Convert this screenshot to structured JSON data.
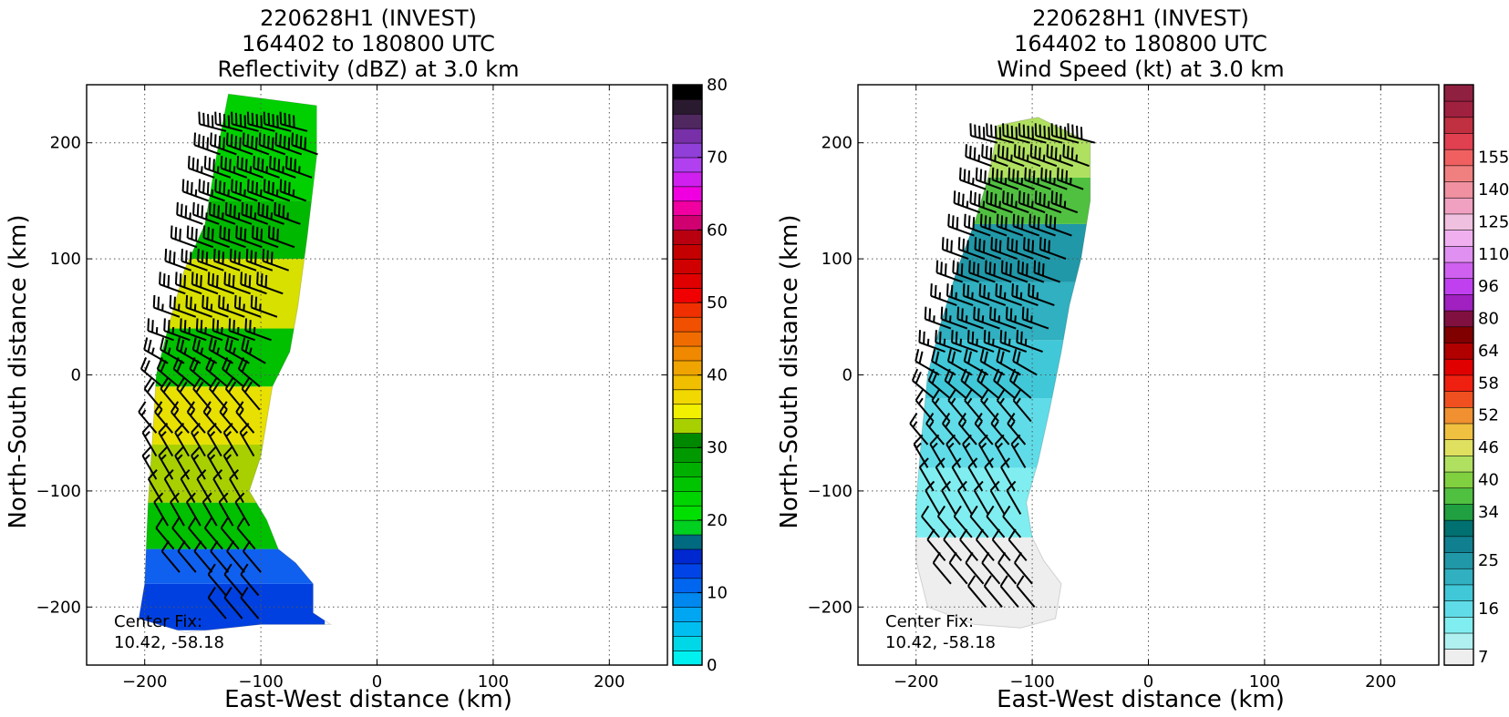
{
  "chart_data": [
    {
      "type": "heatmap",
      "title_lines": [
        "220628H1 (INVEST)",
        "164402 to 180800 UTC",
        "Reflectivity (dBZ) at 3.0 km"
      ],
      "xlabel": "East-West distance (km)",
      "ylabel": "North-South distance (km)",
      "xlim": [
        -250,
        250
      ],
      "ylim": [
        -250,
        250
      ],
      "xticks": [
        -200,
        -100,
        0,
        100,
        200
      ],
      "yticks": [
        -200,
        -100,
        0,
        100,
        200
      ],
      "grid": true,
      "annotation": [
        "Center Fix:",
        "10.42, -58.18"
      ],
      "colorbar": {
        "min": 0,
        "max": 80,
        "ticks": [
          0,
          10,
          20,
          30,
          40,
          50,
          60,
          70,
          80
        ],
        "colors": [
          "#00f0f0",
          "#00d8e8",
          "#00bff0",
          "#00a6f2",
          "#0088ef",
          "#0066f0",
          "#0044e8",
          "#0028d0",
          "#006a80",
          "#00d020",
          "#00e000",
          "#00d400",
          "#00c400",
          "#00b000",
          "#009a00",
          "#008800",
          "#a8d000",
          "#f0f000",
          "#f0d800",
          "#f0bf00",
          "#f0a400",
          "#f08800",
          "#f06c00",
          "#f05000",
          "#f03000",
          "#f00000",
          "#e00000",
          "#d00000",
          "#c40000",
          "#b80010",
          "#d00070",
          "#f000a0",
          "#f000e0",
          "#d020f0",
          "#b040f0",
          "#9040d8",
          "#7830a8",
          "#502860",
          "#2a1a30",
          "#000000"
        ]
      },
      "field": {
        "x_range": [
          -205,
          -45
        ],
        "y_range": [
          -220,
          245
        ],
        "path_km": [
          [
            -128,
            242
          ],
          [
            -52,
            232
          ],
          [
            -52,
            188
          ],
          [
            -60,
            120
          ],
          [
            -68,
            60
          ],
          [
            -75,
            20
          ],
          [
            -90,
            -10
          ],
          [
            -100,
            -70
          ],
          [
            -110,
            -100
          ],
          [
            -95,
            -125
          ],
          [
            -85,
            -150
          ],
          [
            -70,
            -162
          ],
          [
            -55,
            -180
          ],
          [
            -55,
            -205
          ],
          [
            -40,
            -215
          ],
          [
            -100,
            -215
          ],
          [
            -165,
            -222
          ],
          [
            -205,
            -210
          ],
          [
            -200,
            -180
          ],
          [
            -197,
            -110
          ],
          [
            -193,
            -50
          ],
          [
            -190,
            0
          ],
          [
            -180,
            40
          ],
          [
            -166,
            90
          ],
          [
            -148,
            130
          ],
          [
            -138,
            190
          ]
        ],
        "bands_y": [
          [
            -220,
            -180
          ],
          [
            -180,
            -150
          ],
          [
            -150,
            -110
          ],
          [
            -110,
            -60
          ],
          [
            -60,
            -10
          ],
          [
            -10,
            40
          ],
          [
            40,
            100
          ],
          [
            100,
            150
          ],
          [
            150,
            245
          ]
        ],
        "band_colors": [
          "#0040e0",
          "#1060f0",
          "#00c000",
          "#a8d000",
          "#e8e000",
          "#00c000",
          "#d8e000",
          "#00b800",
          "#00d000"
        ]
      },
      "barbs": {
        "rows": [
          {
            "y": 210,
            "x_start": -130,
            "x_end": -55,
            "dir_from": 285,
            "speed_kt": 40
          },
          {
            "y": 190,
            "x_start": -135,
            "x_end": -50,
            "dir_from": 290,
            "speed_kt": 40
          },
          {
            "y": 170,
            "x_start": -140,
            "x_end": -55,
            "dir_from": 290,
            "speed_kt": 35
          },
          {
            "y": 150,
            "x_start": -145,
            "x_end": -60,
            "dir_from": 290,
            "speed_kt": 35
          },
          {
            "y": 130,
            "x_start": -150,
            "x_end": -65,
            "dir_from": 290,
            "speed_kt": 35
          },
          {
            "y": 110,
            "x_start": -155,
            "x_end": -70,
            "dir_from": 290,
            "speed_kt": 30
          },
          {
            "y": 90,
            "x_start": -160,
            "x_end": -70,
            "dir_from": 290,
            "speed_kt": 30
          },
          {
            "y": 70,
            "x_start": -165,
            "x_end": -75,
            "dir_from": 290,
            "speed_kt": 30
          },
          {
            "y": 50,
            "x_start": -170,
            "x_end": -80,
            "dir_from": 290,
            "speed_kt": 25
          },
          {
            "y": 30,
            "x_start": -175,
            "x_end": -85,
            "dir_from": 290,
            "speed_kt": 25
          },
          {
            "y": 10,
            "x_start": -180,
            "x_end": -90,
            "dir_from": 300,
            "speed_kt": 25
          },
          {
            "y": -10,
            "x_start": -185,
            "x_end": -95,
            "dir_from": 310,
            "speed_kt": 20
          },
          {
            "y": -30,
            "x_start": -185,
            "x_end": -100,
            "dir_from": 320,
            "speed_kt": 20
          },
          {
            "y": -50,
            "x_start": -190,
            "x_end": -100,
            "dir_from": 320,
            "speed_kt": 15
          },
          {
            "y": -70,
            "x_start": -190,
            "x_end": -105,
            "dir_from": 330,
            "speed_kt": 15
          },
          {
            "y": -90,
            "x_start": -190,
            "x_end": -110,
            "dir_from": 330,
            "speed_kt": 15
          },
          {
            "y": -110,
            "x_start": -185,
            "x_end": -115,
            "dir_from": 330,
            "speed_kt": 10
          },
          {
            "y": -130,
            "x_start": -180,
            "x_end": -110,
            "dir_from": 330,
            "speed_kt": 10
          },
          {
            "y": -150,
            "x_start": -175,
            "x_end": -100,
            "dir_from": 320,
            "speed_kt": 10
          },
          {
            "y": -170,
            "x_start": -170,
            "x_end": -95,
            "dir_from": 320,
            "speed_kt": 10
          },
          {
            "y": -190,
            "x_start": -130,
            "x_end": -90,
            "dir_from": 320,
            "speed_kt": 10
          },
          {
            "y": -210,
            "x_start": -130,
            "x_end": -100,
            "dir_from": 320,
            "speed_kt": 10
          }
        ],
        "spacing_km": 14
      }
    },
    {
      "type": "heatmap",
      "title_lines": [
        "220628H1 (INVEST)",
        "164402 to 180800 UTC",
        "Wind Speed (kt) at 3.0 km"
      ],
      "xlabel": "East-West distance (km)",
      "ylabel": "North-South distance (km)",
      "xlim": [
        -250,
        250
      ],
      "ylim": [
        -250,
        250
      ],
      "xticks": [
        -200,
        -100,
        0,
        100,
        200
      ],
      "yticks": [
        -200,
        -100,
        0,
        100,
        200
      ],
      "grid": true,
      "annotation": [
        "Center Fix:",
        "10.42, -58.18"
      ],
      "colorbar": {
        "tick_labels": [
          "7",
          "16",
          "25",
          "34",
          "40",
          "46",
          "52",
          "58",
          "64",
          "80",
          "96",
          "110",
          "125",
          "140",
          "155"
        ],
        "tick_bins": [
          0,
          3,
          6,
          9,
          11,
          13,
          15,
          17,
          19,
          21,
          23,
          25,
          27,
          29,
          31
        ],
        "colors": [
          "#eeeeee",
          "#b0f0f0",
          "#80eef0",
          "#60dce8",
          "#40c8d8",
          "#30b0c0",
          "#2098a8",
          "#108090",
          "#007070",
          "#20a040",
          "#50c040",
          "#80d040",
          "#b0e060",
          "#e0e060",
          "#f0c040",
          "#f09030",
          "#f05020",
          "#f02010",
          "#e00000",
          "#b00000",
          "#800000",
          "#801040",
          "#a020c0",
          "#c040f0",
          "#d060f0",
          "#e090f0",
          "#f0b0f0",
          "#f0c0e0",
          "#f0a0c0",
          "#f090a0",
          "#f08080",
          "#f06060",
          "#e04050",
          "#c03040",
          "#a02040",
          "#902040"
        ]
      },
      "field": {
        "x_range": [
          -205,
          -45
        ],
        "y_range": [
          -220,
          225
        ],
        "path_km": [
          [
            -130,
            215
          ],
          [
            -95,
            222
          ],
          [
            -50,
            200
          ],
          [
            -50,
            150
          ],
          [
            -58,
            100
          ],
          [
            -68,
            60
          ],
          [
            -75,
            20
          ],
          [
            -85,
            -30
          ],
          [
            -95,
            -75
          ],
          [
            -105,
            -110
          ],
          [
            -100,
            -140
          ],
          [
            -90,
            -160
          ],
          [
            -75,
            -180
          ],
          [
            -80,
            -210
          ],
          [
            -110,
            -218
          ],
          [
            -150,
            -215
          ],
          [
            -190,
            -200
          ],
          [
            -200,
            -160
          ],
          [
            -200,
            -110
          ],
          [
            -195,
            -50
          ],
          [
            -190,
            0
          ],
          [
            -180,
            40
          ],
          [
            -165,
            90
          ],
          [
            -150,
            130
          ],
          [
            -138,
            170
          ],
          [
            -132,
            200
          ]
        ],
        "bands_y": [
          [
            -220,
            -140
          ],
          [
            -140,
            -80
          ],
          [
            -80,
            -20
          ],
          [
            -20,
            30
          ],
          [
            30,
            80
          ],
          [
            80,
            130
          ],
          [
            130,
            170
          ],
          [
            170,
            225
          ]
        ],
        "band_colors": [
          "#eeeeee",
          "#80eef0",
          "#60dce8",
          "#40c8d8",
          "#30b0c0",
          "#2098a8",
          "#50c040",
          "#b0e060"
        ]
      },
      "barbs": {
        "rows": [
          {
            "y": 200,
            "x_start": -130,
            "x_end": -40,
            "dir_from": 285,
            "speed_kt": 40
          },
          {
            "y": 180,
            "x_start": -135,
            "x_end": -45,
            "dir_from": 290,
            "speed_kt": 35
          },
          {
            "y": 160,
            "x_start": -140,
            "x_end": -55,
            "dir_from": 290,
            "speed_kt": 35
          },
          {
            "y": 140,
            "x_start": -145,
            "x_end": -60,
            "dir_from": 290,
            "speed_kt": 35
          },
          {
            "y": 120,
            "x_start": -150,
            "x_end": -65,
            "dir_from": 290,
            "speed_kt": 30
          },
          {
            "y": 100,
            "x_start": -155,
            "x_end": -70,
            "dir_from": 290,
            "speed_kt": 30
          },
          {
            "y": 80,
            "x_start": -160,
            "x_end": -70,
            "dir_from": 290,
            "speed_kt": 30
          },
          {
            "y": 60,
            "x_start": -165,
            "x_end": -75,
            "dir_from": 290,
            "speed_kt": 25
          },
          {
            "y": 40,
            "x_start": -170,
            "x_end": -80,
            "dir_from": 290,
            "speed_kt": 25
          },
          {
            "y": 20,
            "x_start": -175,
            "x_end": -85,
            "dir_from": 290,
            "speed_kt": 25
          },
          {
            "y": 0,
            "x_start": -180,
            "x_end": -90,
            "dir_from": 300,
            "speed_kt": 20
          },
          {
            "y": -20,
            "x_start": -185,
            "x_end": -95,
            "dir_from": 310,
            "speed_kt": 20
          },
          {
            "y": -40,
            "x_start": -185,
            "x_end": -100,
            "dir_from": 320,
            "speed_kt": 15
          },
          {
            "y": -60,
            "x_start": -190,
            "x_end": -100,
            "dir_from": 320,
            "speed_kt": 15
          },
          {
            "y": -80,
            "x_start": -190,
            "x_end": -105,
            "dir_from": 330,
            "speed_kt": 15
          },
          {
            "y": -100,
            "x_start": -185,
            "x_end": -110,
            "dir_from": 330,
            "speed_kt": 10
          },
          {
            "y": -120,
            "x_start": -180,
            "x_end": -110,
            "dir_from": 330,
            "speed_kt": 10
          },
          {
            "y": -140,
            "x_start": -180,
            "x_end": -105,
            "dir_from": 320,
            "speed_kt": 10
          },
          {
            "y": -160,
            "x_start": -175,
            "x_end": -95,
            "dir_from": 320,
            "speed_kt": 10
          },
          {
            "y": -180,
            "x_start": -170,
            "x_end": -90,
            "dir_from": 320,
            "speed_kt": 10
          },
          {
            "y": -200,
            "x_start": -140,
            "x_end": -90,
            "dir_from": 320,
            "speed_kt": 10
          }
        ],
        "spacing_km": 14
      }
    }
  ]
}
